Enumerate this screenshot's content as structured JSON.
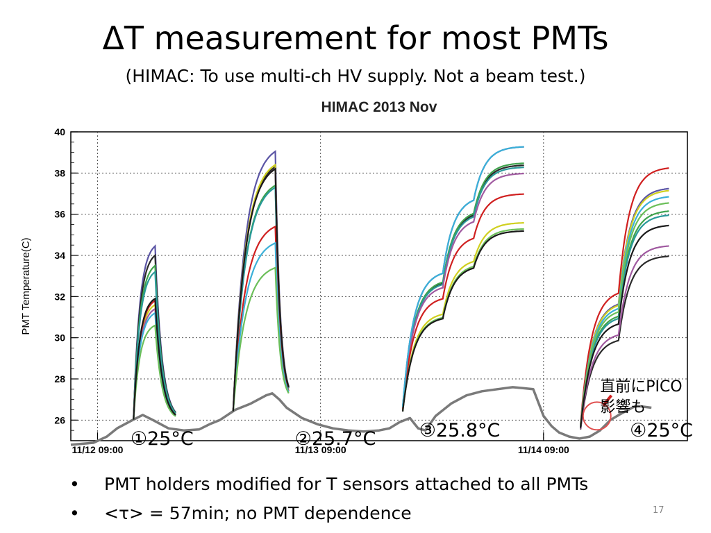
{
  "slide": {
    "title": "ΔT measurement for most PMTs",
    "subtitle": "(HIMAC: To use multi-ch HV supply.  Not a beam test.)",
    "bullets": [
      "PMT holders modified for T sensors attached to all PMTs",
      "<τ> = 57min; no PMT dependence"
    ],
    "bullet_symbol": "•",
    "page_number": "17"
  },
  "chart_data": {
    "type": "line",
    "title": "HIMAC 2013 Nov",
    "ylabel": "PMT Temperature(C)",
    "xlabel": "",
    "ylim": [
      25,
      40
    ],
    "xlim": [
      0,
      60
    ],
    "yticks": [
      26,
      28,
      30,
      32,
      34,
      36,
      38,
      40
    ],
    "yticklabels": [
      "26",
      "28",
      "30",
      "32",
      "34",
      "36",
      "38",
      "40"
    ],
    "xticks": [
      {
        "x": 2.6,
        "label": "11/12 09:00"
      },
      {
        "x": 24.3,
        "label": "11/13 09:00"
      },
      {
        "x": 46.0,
        "label": "11/14 09:00"
      }
    ],
    "grid": true,
    "annotations": [
      {
        "label": "①25°C",
        "x": 5.8,
        "y": 24.8
      },
      {
        "label": "②25.7°C",
        "x": 21.8,
        "y": 24.8
      },
      {
        "label": "③25.8°C",
        "x": 33.9,
        "y": 25.2
      },
      {
        "label": "④25°C",
        "x": 54.4,
        "y": 25.2
      },
      {
        "label": "直前にPICO",
        "x": 51.5,
        "y": 27.4
      },
      {
        "label": "影響も",
        "x": 51.5,
        "y": 26.4
      }
    ],
    "ambient": {
      "color": "#7a7a7a",
      "x": [
        0.0,
        2.2,
        3.5,
        4.5,
        6.0,
        7.0,
        8.0,
        9.5,
        11.0,
        12.5,
        13.5,
        14.5,
        16.0,
        17.5,
        19.0,
        19.6,
        20.3,
        21.0,
        22.5,
        24.0,
        25.5,
        27.0,
        28.5,
        30.0,
        31.0,
        32.0,
        33.0,
        33.8,
        34.5,
        35.5,
        37.0,
        38.5,
        40.0,
        41.5,
        43.0,
        44.0,
        45.0,
        46.0,
        46.8,
        47.5,
        48.5,
        49.5,
        50.5,
        51.5,
        52.5,
        53.5,
        55.0,
        56.5
      ],
      "y": [
        24.8,
        24.9,
        25.2,
        25.6,
        26.0,
        26.25,
        26.0,
        25.6,
        25.5,
        25.55,
        25.8,
        26.0,
        26.5,
        26.8,
        27.2,
        27.3,
        27.0,
        26.6,
        26.1,
        25.8,
        25.6,
        25.5,
        25.45,
        25.5,
        25.6,
        25.9,
        26.1,
        25.6,
        25.5,
        26.2,
        26.8,
        27.2,
        27.4,
        27.5,
        27.6,
        27.55,
        27.5,
        26.2,
        25.7,
        25.4,
        25.2,
        25.1,
        25.2,
        25.5,
        26.0,
        26.3,
        26.7,
        26.6
      ]
    },
    "series": [
      {
        "color": "#5b55a5",
        "values": [
          34.45,
          39.05,
          39.3,
          37.3
        ]
      },
      {
        "color": "#2a2a2a",
        "values": [
          34.0,
          38.3,
          38.4,
          34.0
        ]
      },
      {
        "color": "#3fa34d",
        "values": [
          33.5,
          37.4,
          38.5,
          36.2
        ]
      },
      {
        "color": "#2a9a9a",
        "values": [
          33.2,
          37.3,
          38.3,
          36.0
        ]
      },
      {
        "color": "#d0d020",
        "values": [
          31.6,
          38.4,
          35.6,
          37.2
        ]
      },
      {
        "color": "#a05aa0",
        "values": [
          31.4,
          38.2,
          38.0,
          34.5
        ]
      },
      {
        "color": "#d02020",
        "values": [
          31.8,
          35.4,
          37.0,
          38.3
        ]
      },
      {
        "color": "#3bb0d8",
        "values": [
          31.2,
          34.6,
          39.3,
          36.9
        ]
      },
      {
        "color": "#6cbf5a",
        "values": [
          30.6,
          33.4,
          35.3,
          36.6
        ]
      },
      {
        "color": "#1a1a1a",
        "values": [
          31.9,
          38.2,
          35.2,
          35.5
        ]
      }
    ]
  }
}
